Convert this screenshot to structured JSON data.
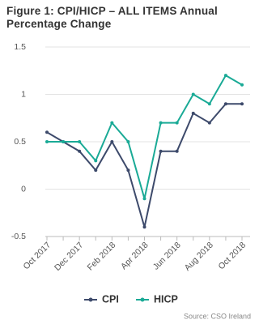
{
  "chart_data": {
    "type": "line",
    "title": "Figure 1: CPI/HICP – ALL ITEMS Annual Percentage Change",
    "categories": [
      "Oct 2017",
      null,
      "Dec 2017",
      null,
      "Feb 2018",
      null,
      "Apr 2018",
      null,
      "Jun 2018",
      null,
      "Aug 2018",
      null,
      "Oct 2018"
    ],
    "series": [
      {
        "name": "CPI",
        "color": "#3d4a6b",
        "values": [
          0.6,
          0.5,
          0.4,
          0.2,
          0.5,
          0.2,
          -0.4,
          0.4,
          0.4,
          0.8,
          0.7,
          0.9,
          0.9
        ]
      },
      {
        "name": "HICP",
        "color": "#1aaa96",
        "values": [
          0.5,
          0.5,
          0.5,
          0.3,
          0.7,
          0.5,
          -0.1,
          0.7,
          0.7,
          1.0,
          0.9,
          1.2,
          1.1
        ]
      }
    ],
    "ylim": [
      -0.5,
      1.5
    ],
    "yticks": [
      -0.5,
      0,
      0.5,
      1,
      1.5
    ],
    "grid": true,
    "source": "Source: CSO Ireland"
  }
}
